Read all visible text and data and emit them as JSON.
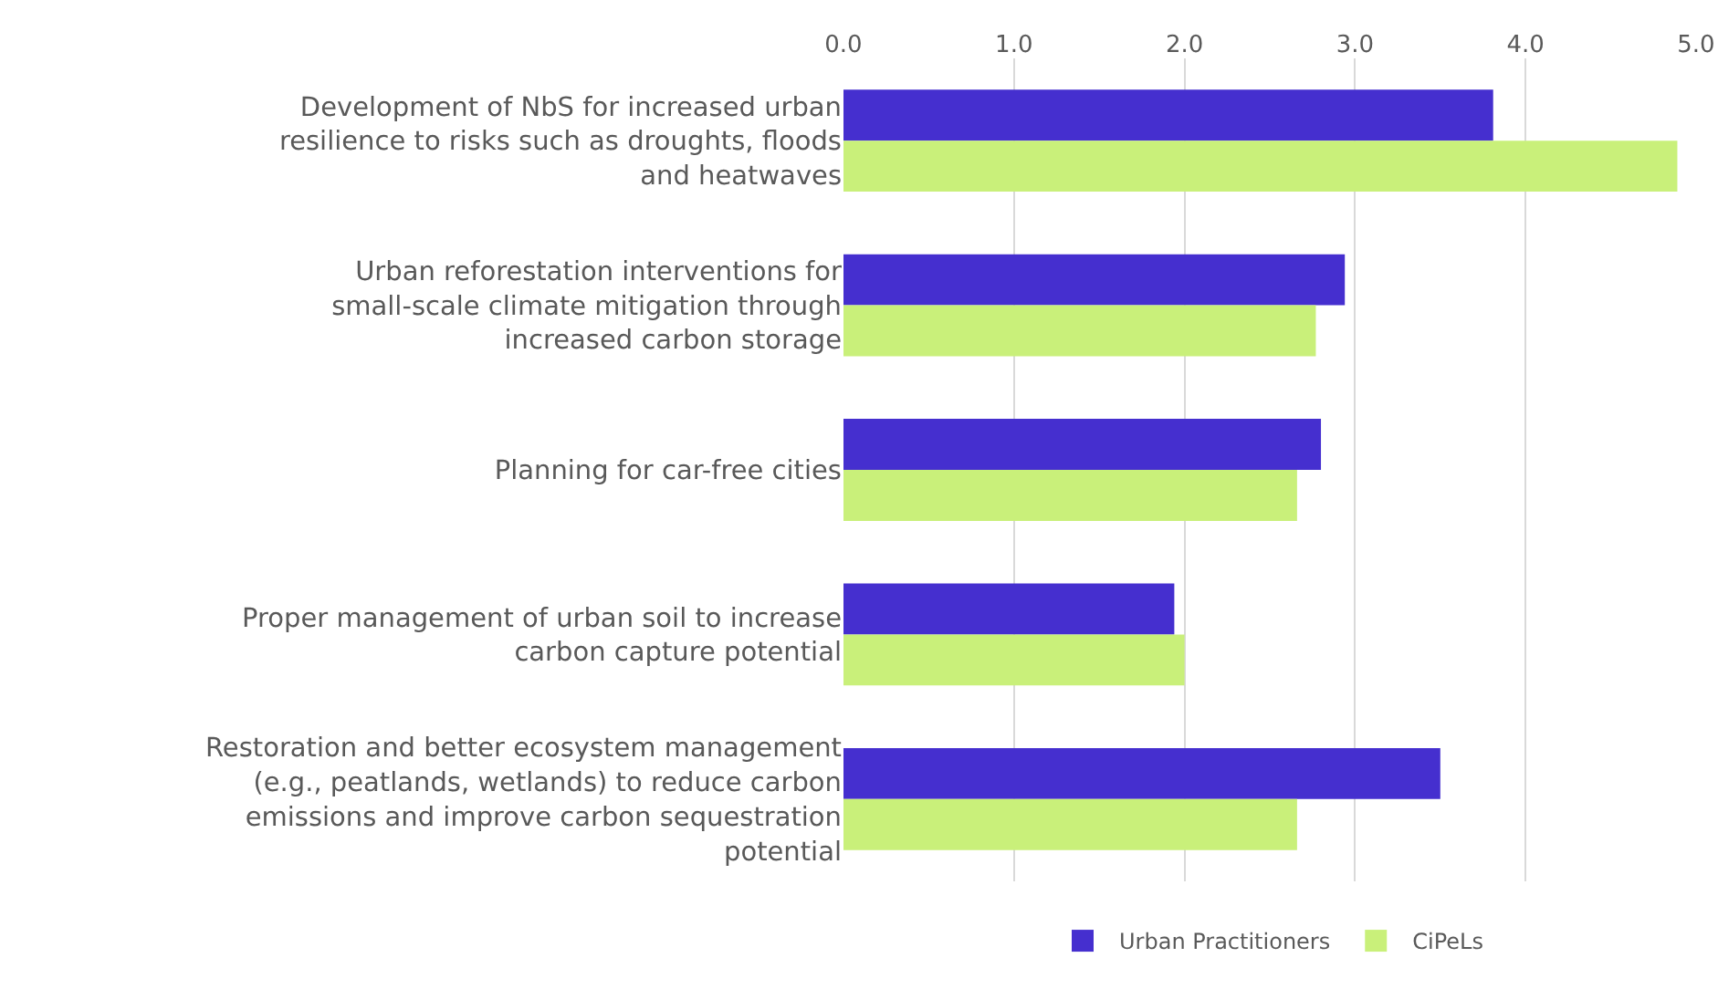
{
  "chart_data": {
    "type": "bar",
    "orientation": "horizontal",
    "categories": [
      "Development of NbS for increased urban resilience to risks such as droughts, floods and heatwaves",
      "Urban reforestation interventions for small-scale climate mitigation through increased carbon storage",
      "Planning for car-free cities",
      "Proper management of urban soil to increase carbon capture potential",
      "Restoration and better ecosystem management (e.g., peatlands, wetlands) to reduce carbon emissions and improve carbon sequestration potential"
    ],
    "series": [
      {
        "name": "Urban Practitioners",
        "color": "#452fcf",
        "values": [
          3.81,
          2.94,
          2.8,
          1.94,
          3.5
        ]
      },
      {
        "name": "CiPeLs",
        "color": "#c9f07a",
        "values": [
          4.89,
          2.77,
          2.66,
          2.0,
          2.66
        ]
      }
    ],
    "xlim": [
      0,
      5
    ],
    "xticks": [
      {
        "value": 0,
        "label": "0.0"
      },
      {
        "value": 1,
        "label": "1.0"
      },
      {
        "value": 2,
        "label": "2.0"
      },
      {
        "value": 3,
        "label": "3.0"
      },
      {
        "value": 4,
        "label": "4.0"
      },
      {
        "value": 5,
        "label": "5.0"
      }
    ],
    "grid": "x",
    "legend": "bottom"
  }
}
